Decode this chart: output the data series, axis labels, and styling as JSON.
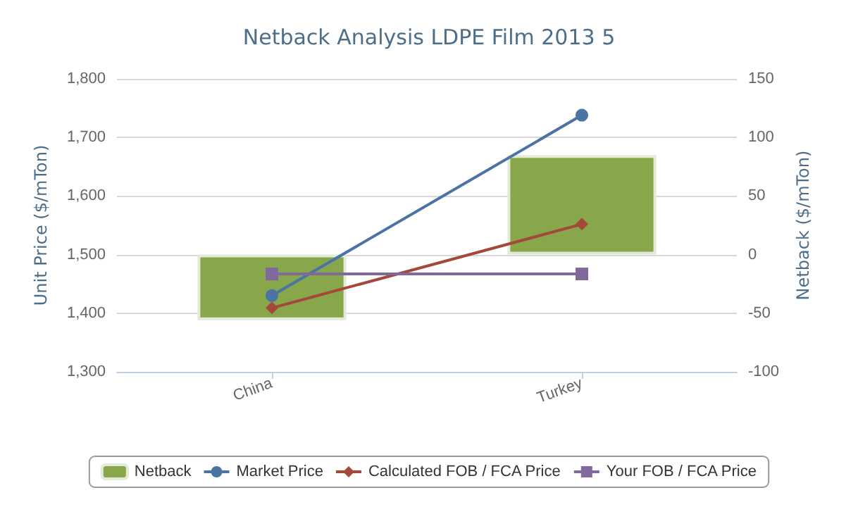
{
  "chart_data": {
    "type": "line",
    "title": "Netback Analysis LDPE Film 2013 5",
    "categories": [
      "China",
      "Turkey"
    ],
    "series": [
      {
        "name": "Netback",
        "type": "bar",
        "axis": "y2",
        "color": "#88a64a",
        "values": [
          -56,
          85
        ]
      },
      {
        "name": "Market Price",
        "color": "#4a74a3",
        "marker": "circle",
        "values": [
          1430,
          1738
        ]
      },
      {
        "name": "Calculated FOB / FCA Price",
        "color": "#a3483a",
        "marker": "diamond",
        "values": [
          1409,
          1552
        ]
      },
      {
        "name": "Your FOB / FCA Price",
        "color": "#80699b",
        "marker": "square",
        "values": [
          1467,
          1467
        ]
      }
    ],
    "ylabel": "Unit Price ($/mTon)",
    "y2label": "Netback ($/mTon)",
    "ylim": [
      1300,
      1800
    ],
    "yticks": [
      {
        "value": 1300,
        "label": "1,300"
      },
      {
        "value": 1400,
        "label": "1,400"
      },
      {
        "value": 1500,
        "label": "1,500"
      },
      {
        "value": 1600,
        "label": "1,600"
      },
      {
        "value": 1700,
        "label": "1,700"
      },
      {
        "value": 1800,
        "label": "1,800"
      }
    ],
    "y2lim": [
      -100,
      150
    ],
    "y2ticks": [
      -100,
      -50,
      0,
      50,
      100,
      150
    ],
    "grid": "y",
    "legend": "bottom"
  }
}
